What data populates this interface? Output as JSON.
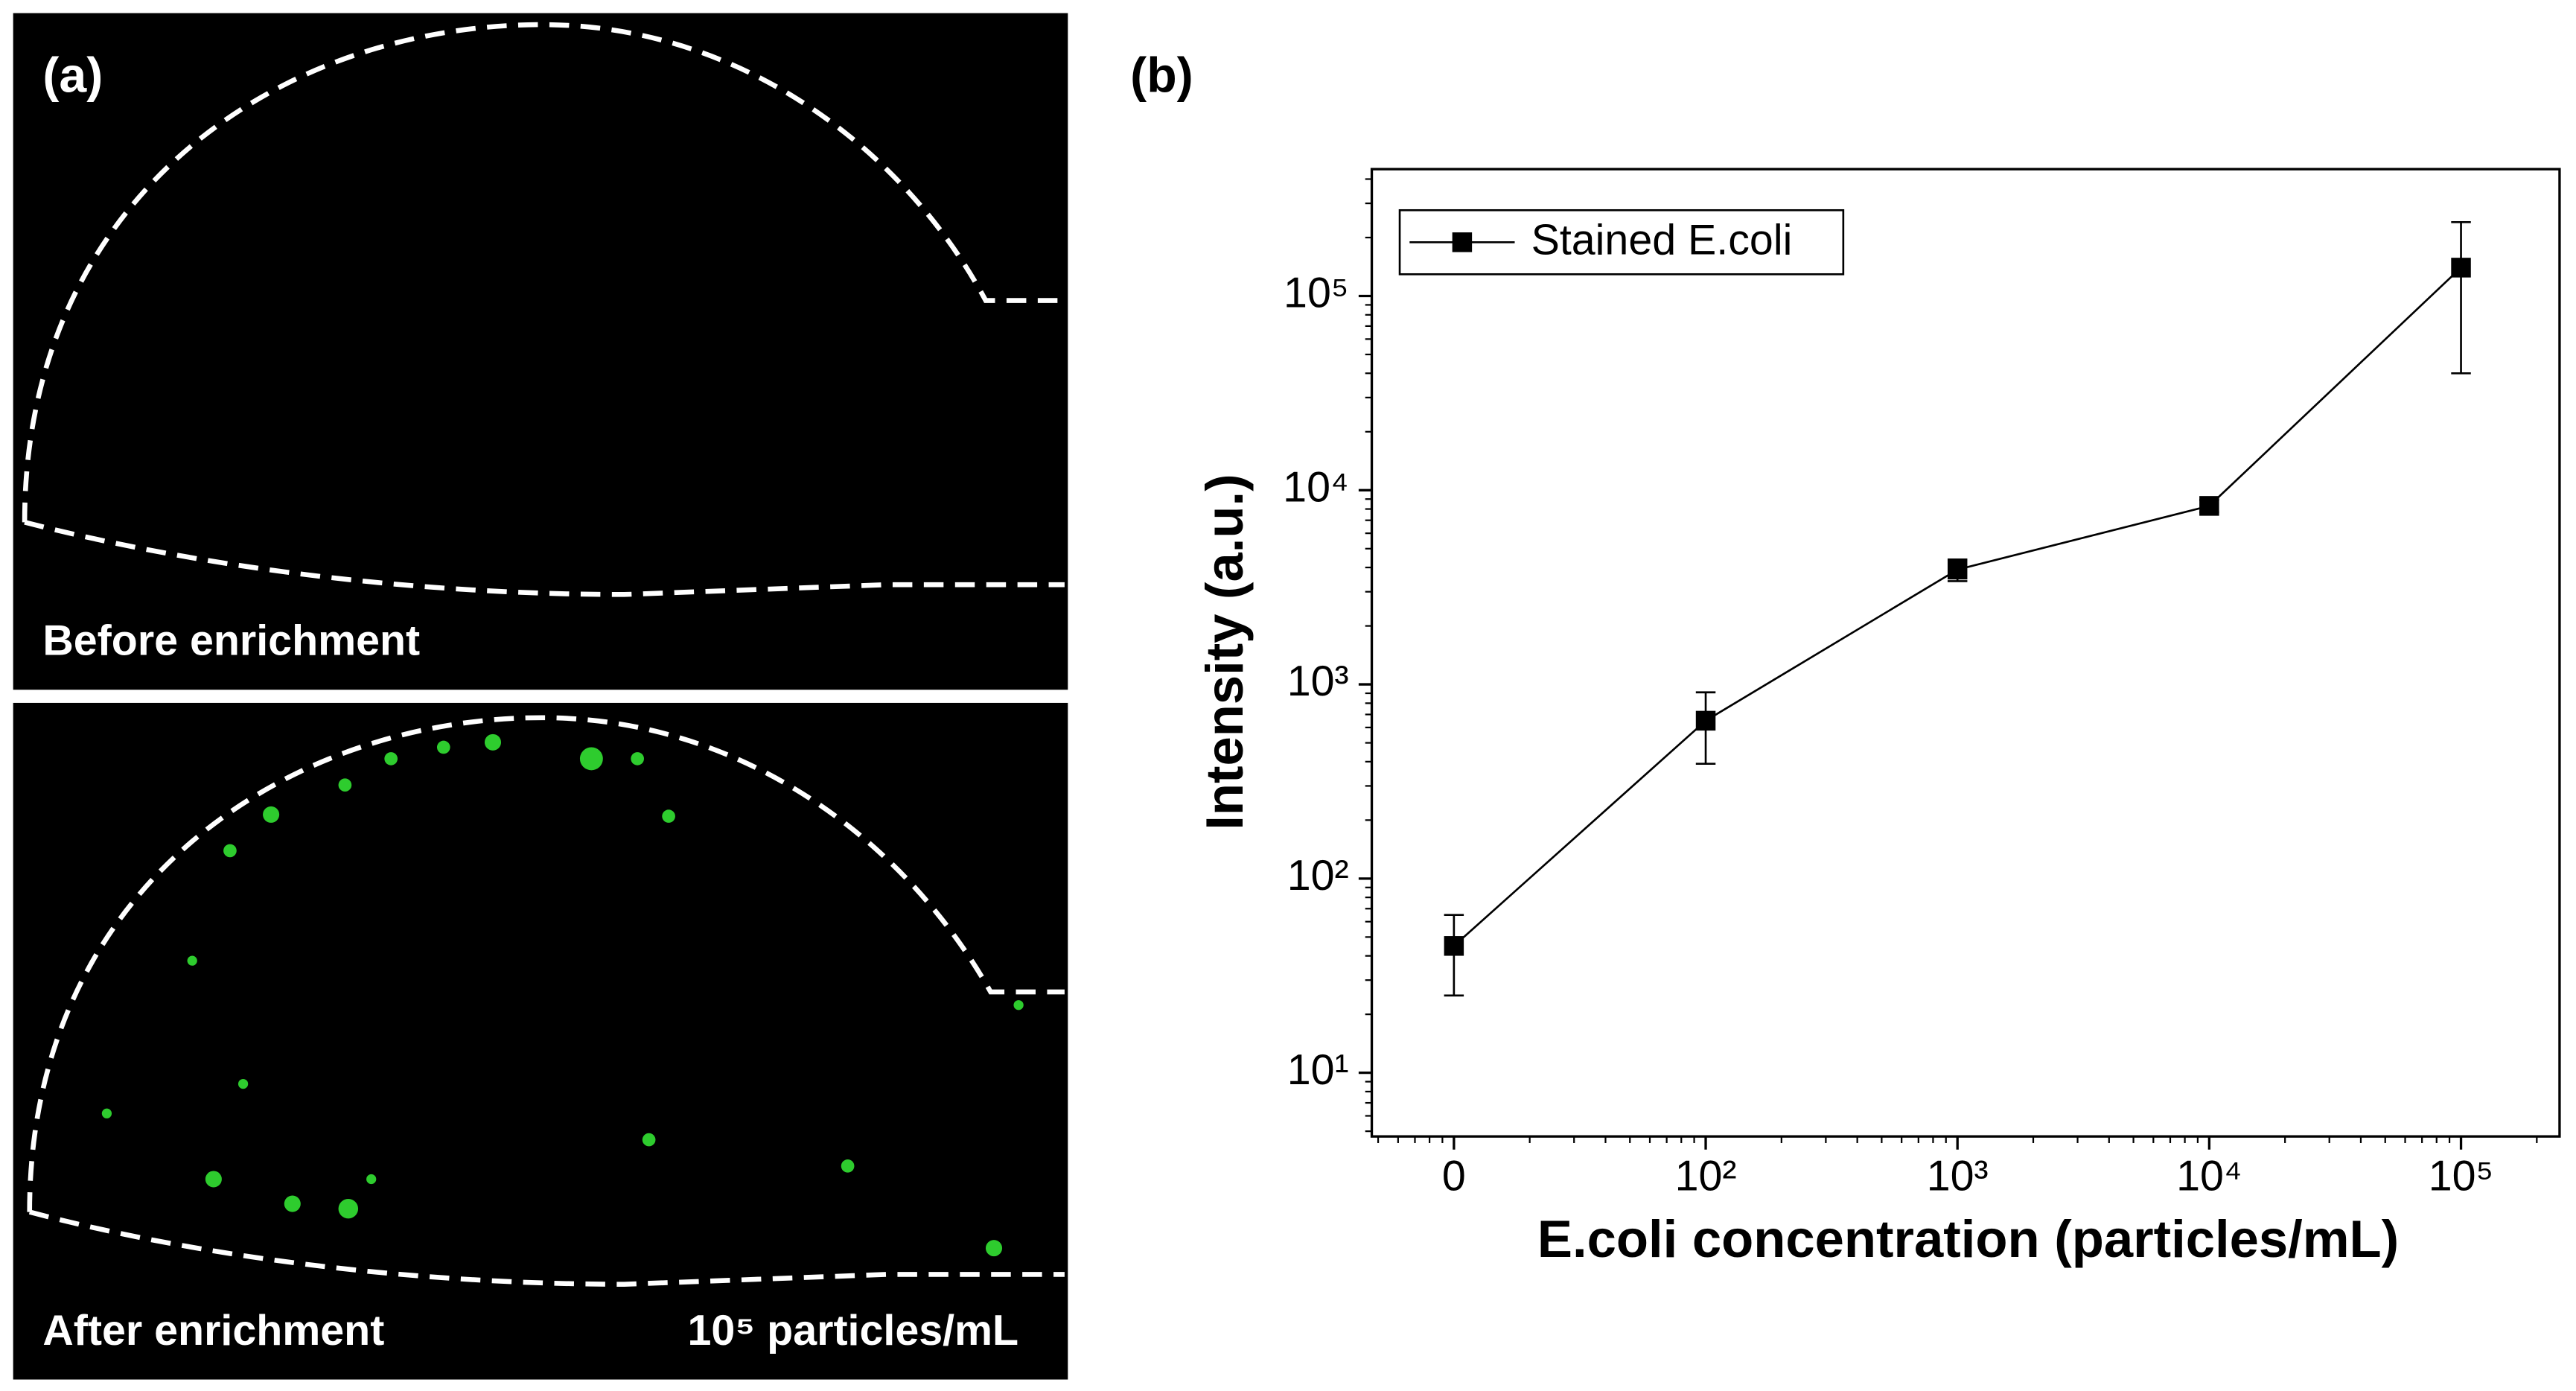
{
  "figure": {
    "label_a": "(a)",
    "label_b": "(b)",
    "top_caption": "Before enrichment",
    "bottom_caption": "After enrichment",
    "bottom_note": "10⁵ particles/mL"
  },
  "chart_data": {
    "type": "line",
    "ylabel": "Intensity (a.u.)",
    "xlabel": "E.coli concentration (particles/mL)",
    "categories": [
      "0",
      "10²",
      "10³",
      "10⁴",
      "10⁵"
    ],
    "series": [
      {
        "name": "Stained E.coli",
        "color": "#000000",
        "values": [
          45,
          650,
          3900,
          8300,
          140000
        ],
        "errors": [
          20,
          260,
          500,
          600,
          100000
        ]
      }
    ],
    "ylog": true,
    "ylim": [
      4.7,
      450000
    ],
    "yticks": [
      {
        "value": 10,
        "label": "10¹"
      },
      {
        "value": 100,
        "label": "10²"
      },
      {
        "value": 1000,
        "label": "10³"
      },
      {
        "value": 10000,
        "label": "10⁴"
      },
      {
        "value": 100000,
        "label": "10⁵"
      }
    ],
    "legend": "upper left"
  }
}
